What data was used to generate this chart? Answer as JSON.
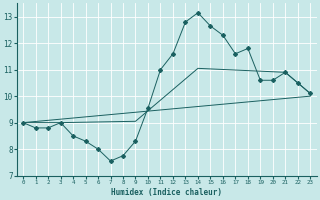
{
  "title": "",
  "xlabel": "Humidex (Indice chaleur)",
  "ylabel": "",
  "bg_color": "#c8e8e8",
  "line_color": "#1a6060",
  "grid_color": "#ffffff",
  "xlim": [
    -0.5,
    23.5
  ],
  "ylim": [
    7,
    13.5
  ],
  "yticks": [
    7,
    8,
    9,
    10,
    11,
    12,
    13
  ],
  "xticks": [
    0,
    1,
    2,
    3,
    4,
    5,
    6,
    7,
    8,
    9,
    10,
    11,
    12,
    13,
    14,
    15,
    16,
    17,
    18,
    19,
    20,
    21,
    22,
    23
  ],
  "line1_x": [
    0,
    1,
    2,
    3,
    4,
    5,
    6,
    7,
    8,
    9,
    10,
    11,
    12,
    13,
    14,
    15,
    16,
    17,
    18,
    19,
    20,
    21,
    22,
    23
  ],
  "line1_y": [
    9.0,
    8.8,
    8.8,
    9.0,
    8.5,
    8.3,
    8.0,
    7.55,
    7.75,
    8.3,
    9.55,
    11.0,
    11.6,
    12.8,
    13.15,
    12.65,
    12.3,
    11.6,
    11.8,
    10.6,
    10.6,
    10.9,
    10.5,
    10.1
  ],
  "line2_x": [
    0,
    3,
    9,
    14,
    21,
    23
  ],
  "line2_y": [
    9.0,
    9.0,
    9.05,
    11.05,
    10.9,
    10.1
  ],
  "line3_x": [
    0,
    23
  ],
  "line3_y": [
    9.0,
    10.0
  ]
}
